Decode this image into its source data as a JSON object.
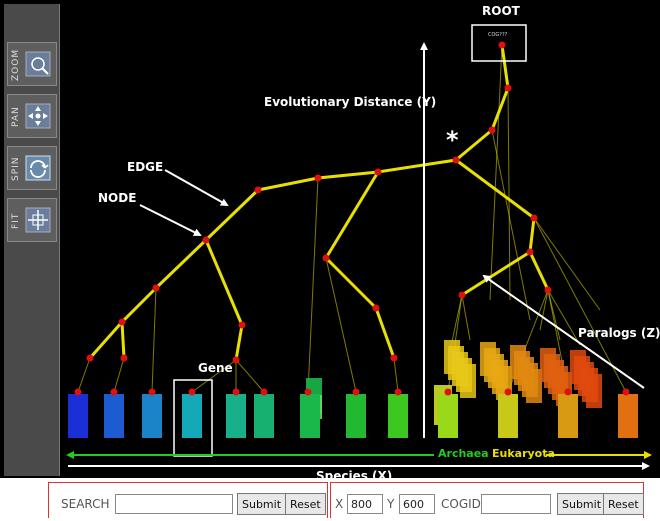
{
  "annotations": {
    "root": "ROOT",
    "root_box_text": "COG???",
    "distance_axis": "Evolutionary Distance (Y)",
    "edge": "EDGE",
    "node": "NODE",
    "star": "*",
    "gene": "Gene",
    "paralogs": "Paralogs (Z)",
    "archaea": "Archaea",
    "eukaryota": "Eukaryota",
    "species_axis": "Species (X)"
  },
  "toolbar": {
    "tools": [
      {
        "label": "ZOOM",
        "icon": "zoom-icon"
      },
      {
        "label": "PAN",
        "icon": "pan-icon"
      },
      {
        "label": "SPIN",
        "icon": "spin-icon"
      },
      {
        "label": "FIT",
        "icon": "fit-icon"
      }
    ]
  },
  "search": {
    "label": "SEARCH",
    "value": "",
    "submit_label": "Submit",
    "reset_label": "Reset"
  },
  "coords": {
    "x_label": "X",
    "x_value": "800",
    "y_label": "Y",
    "y_value": "600",
    "cogid_label": "COGID",
    "cogid_value": "",
    "submit_label": "Submit",
    "reset_label": "Reset"
  },
  "colors": {
    "edge": "#e8e000",
    "node": "#e01010",
    "archaea_arrow": "#22cc22",
    "eukaryota_arrow": "#e8e000",
    "panel_border": "#dd3333"
  },
  "leaves": [
    {
      "color": "#1a2fd6"
    },
    {
      "color": "#1c5bd0"
    },
    {
      "color": "#1a84c8"
    },
    {
      "color": "#14a8b8"
    },
    {
      "color": "#17b08a"
    },
    {
      "color": "#17b070"
    },
    {
      "color": "#1ab84a"
    },
    {
      "color": "#22b830"
    },
    {
      "color": "#3cc820"
    },
    {
      "color": "#9ad81a"
    },
    {
      "color": "#c8c818"
    },
    {
      "color": "#d89a12"
    },
    {
      "color": "#e07010"
    },
    {
      "color": "#e04a0e"
    }
  ]
}
